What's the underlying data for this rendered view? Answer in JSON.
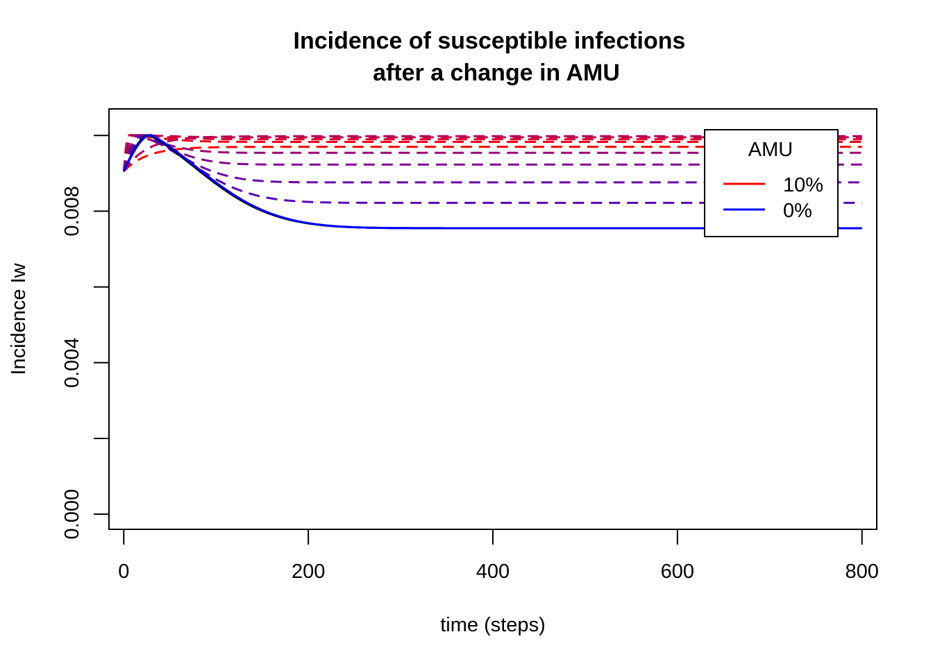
{
  "chart_data": {
    "type": "line",
    "title": "Incidence of susceptible infections",
    "subtitle": "after a change in AMU",
    "xlabel": "time (steps)",
    "ylabel": "Incidence Iw",
    "xlim": [
      -16,
      816
    ],
    "ylim": [
      -0.0004,
      0.0107
    ],
    "x_ticks": [
      0,
      200,
      400,
      600,
      800
    ],
    "y_ticks": [
      0.0,
      0.002,
      0.004,
      0.006,
      0.008,
      0.01
    ],
    "y_tick_labels": [
      "0.000",
      "",
      "0.004",
      "",
      "0.008",
      ""
    ],
    "legend": {
      "title": "AMU",
      "position": "top-right",
      "entries": [
        {
          "label": "10%",
          "color": "#ff0000"
        },
        {
          "label": "0%",
          "color": "#0000ff"
        }
      ]
    },
    "initial": 0.00905,
    "peak": 0.01001,
    "series": [
      {
        "t0": 0,
        "final": 0.0097,
        "color": "#ff0000",
        "dash": "dashed"
      },
      {
        "t0": 5,
        "final": 0.00983,
        "color": "#f0001a",
        "dash": "dashed"
      },
      {
        "t0": 10,
        "final": 0.0099,
        "color": "#dd0030",
        "dash": "dashed"
      },
      {
        "t0": 15,
        "final": 0.00995,
        "color": "#c80045",
        "dash": "dashed"
      },
      {
        "t0": 0,
        "final": 0.00998,
        "color": "#b5005a",
        "dash": "dashed"
      },
      {
        "t0": 8,
        "final": 0.00954,
        "color": "#9a0078",
        "dash": "dashed"
      },
      {
        "t0": 15,
        "final": 0.00923,
        "color": "#800090",
        "dash": "dashed"
      },
      {
        "t0": 20,
        "final": 0.00876,
        "color": "#6a00a5",
        "dash": "dashed"
      },
      {
        "t0": 25,
        "final": 0.00822,
        "color": "#5500b8",
        "dash": "dashed"
      },
      {
        "t0": 28,
        "final": 0.00755,
        "color": "#000000",
        "dash": "solid"
      },
      {
        "t0": 30,
        "final": 0.00755,
        "color": "#0000ff",
        "dash": "solid"
      }
    ]
  }
}
